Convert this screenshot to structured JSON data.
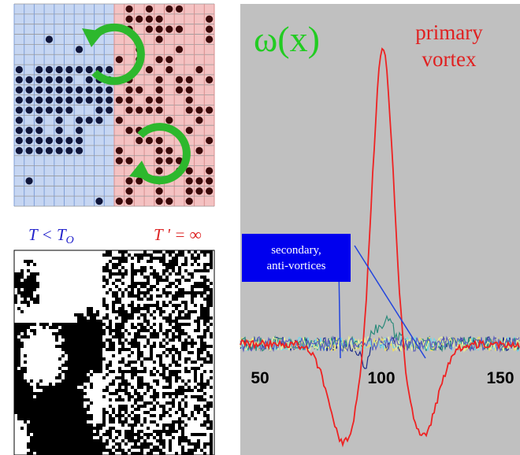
{
  "lattice_panel": {
    "left_label": {
      "text": "T < T",
      "subscript": "O"
    },
    "right_label": "T ' = ∞"
  },
  "plot_panel": {
    "title": "ω(x)",
    "annotation": [
      "primary",
      "vortex"
    ],
    "callout": [
      "secondary,",
      "anti-vortices"
    ],
    "axis_labels": [
      "50",
      "100",
      "150"
    ]
  }
}
